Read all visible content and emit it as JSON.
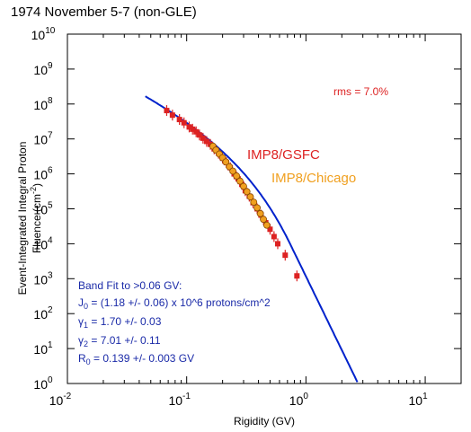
{
  "title": "1974 November 5-7 (non-GLE)",
  "chart_data": {
    "type": "scatter",
    "title": "1974 November 5-7 (non-GLE)",
    "xlabel": "Rigidity (GV)",
    "ylabel_main": "Event-Integrated Integral Proton Fluence (cm",
    "ylabel_exp": "-2",
    "ylabel_close": ")",
    "x_scale": "log",
    "y_scale": "log",
    "xlim": [
      0.01,
      20
    ],
    "ylim": [
      1,
      10000000000
    ],
    "grid": false,
    "x_ticks": [
      {
        "base": "10",
        "exp": "-2",
        "value": 0.01
      },
      {
        "base": "10",
        "exp": "-1",
        "value": 0.1
      },
      {
        "base": "10",
        "exp": "0",
        "value": 1
      },
      {
        "base": "10",
        "exp": "1",
        "value": 10
      }
    ],
    "y_ticks": [
      {
        "base": "10",
        "exp": "0",
        "value": 1
      },
      {
        "base": "10",
        "exp": "1",
        "value": 10
      },
      {
        "base": "10",
        "exp": "2",
        "value": 100
      },
      {
        "base": "10",
        "exp": "3",
        "value": 1000
      },
      {
        "base": "10",
        "exp": "4",
        "value": 10000
      },
      {
        "base": "10",
        "exp": "5",
        "value": 100000
      },
      {
        "base": "10",
        "exp": "6",
        "value": 1000000
      },
      {
        "base": "10",
        "exp": "7",
        "value": 10000000
      },
      {
        "base": "10",
        "exp": "8",
        "value": 100000000
      },
      {
        "base": "10",
        "exp": "9",
        "value": 1000000000
      },
      {
        "base": "10",
        "exp": "10",
        "value": 10000000000
      }
    ],
    "series": [
      {
        "name": "IMP8/GSFC",
        "color": "#dd2222",
        "x": [
          0.068,
          0.076,
          0.087,
          0.095,
          0.105,
          0.112,
          0.12,
          0.128,
          0.137,
          0.147,
          0.158,
          0.17,
          0.185,
          0.2,
          0.215,
          0.232,
          0.25,
          0.27,
          0.29,
          0.31,
          0.335,
          0.36,
          0.39,
          0.42,
          0.46,
          0.5,
          0.54,
          0.58,
          0.67,
          0.84
        ],
        "y": [
          65000000,
          48000000,
          36000000,
          29000000,
          22000000,
          19000000,
          16000000,
          13000000,
          10500000,
          8500000,
          7000000,
          5200000,
          3900000,
          2800000,
          2100000,
          1500000,
          1000000,
          720000,
          500000,
          330000,
          230000,
          150000,
          100000,
          66000,
          40000,
          26000,
          16000,
          10000,
          4700,
          1200
        ]
      },
      {
        "name": "IMP8/Chicago",
        "color": "#f0a020",
        "x": [
          0.166,
          0.176,
          0.188,
          0.2,
          0.213,
          0.228,
          0.244,
          0.262,
          0.28,
          0.3,
          0.32,
          0.342,
          0.365,
          0.39,
          0.415,
          0.44,
          0.47
        ],
        "y": [
          6200000,
          4800000,
          3700000,
          2900000,
          2200000,
          1600000,
          1200000,
          870000,
          620000,
          440000,
          310000,
          220000,
          155000,
          107000,
          73000,
          50000,
          34000
        ]
      }
    ],
    "fit": {
      "color": "#0022cc",
      "x_range": [
        0.045,
        2.7
      ],
      "J0": 1180000,
      "gamma1": 1.7,
      "gamma2": 7.01,
      "R0": 0.139
    },
    "annotations": {
      "rms": "rms = 7.0%",
      "label_gsfc": "IMP8/GSFC",
      "label_chicago": "IMP8/Chicago",
      "fit_line1": "Band Fit to >0.06 GV:",
      "fit_j0_pre": "J",
      "fit_j0_sub": "0",
      "fit_j0_post": " = (1.18 +/- 0.06) x 10^6 protons/cm^2",
      "fit_g1_sub": "1",
      "fit_g1_post": " = 1.70 +/- 0.03",
      "fit_g2_sub": "2",
      "fit_g2_post": " = 7.01 +/- 0.11",
      "fit_r0_pre": "R",
      "fit_r0_sub": "0",
      "fit_r0_post": " = 0.139 +/- 0.003 GV"
    }
  }
}
